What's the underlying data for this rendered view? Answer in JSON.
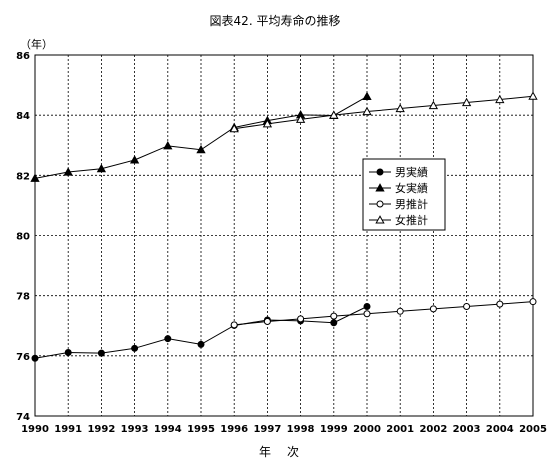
{
  "chart_data": {
    "type": "line",
    "title": "図表42. 平均寿命の推移",
    "ylabel": "（年）",
    "xlabel": "年　次",
    "x": [
      1990,
      1991,
      1992,
      1993,
      1994,
      1995,
      1996,
      1997,
      1998,
      1999,
      2000,
      2001,
      2002,
      2003,
      2004,
      2005
    ],
    "ylim": [
      74,
      86
    ],
    "yticks": [
      74,
      76,
      78,
      80,
      82,
      84,
      86
    ],
    "grid": true,
    "legend_position": "right-center",
    "series": [
      {
        "name": "男実績",
        "marker": "filled-circle",
        "x": [
          1990,
          1991,
          1992,
          1993,
          1994,
          1995,
          1996,
          1997,
          1998,
          1999,
          2000
        ],
        "values": [
          75.92,
          76.11,
          76.09,
          76.25,
          76.57,
          76.38,
          77.01,
          77.19,
          77.16,
          77.1,
          77.64
        ]
      },
      {
        "name": "女実績",
        "marker": "filled-triangle",
        "x": [
          1990,
          1991,
          1992,
          1993,
          1994,
          1995,
          1996,
          1997,
          1998,
          1999,
          2000
        ],
        "values": [
          81.9,
          82.11,
          82.22,
          82.51,
          82.98,
          82.85,
          83.59,
          83.82,
          84.01,
          83.99,
          84.62
        ]
      },
      {
        "name": "男推計",
        "marker": "open-circle",
        "x": [
          1996,
          1997,
          1998,
          1999,
          2000,
          2001,
          2002,
          2003,
          2004,
          2005
        ],
        "values": [
          77.03,
          77.14,
          77.23,
          77.32,
          77.4,
          77.48,
          77.56,
          77.64,
          77.72,
          77.8
        ]
      },
      {
        "name": "女推計",
        "marker": "open-triangle",
        "x": [
          1996,
          1997,
          1998,
          1999,
          2000,
          2001,
          2002,
          2003,
          2004,
          2005
        ],
        "values": [
          83.55,
          83.71,
          83.86,
          84.0,
          84.12,
          84.22,
          84.32,
          84.42,
          84.52,
          84.63
        ]
      }
    ]
  }
}
